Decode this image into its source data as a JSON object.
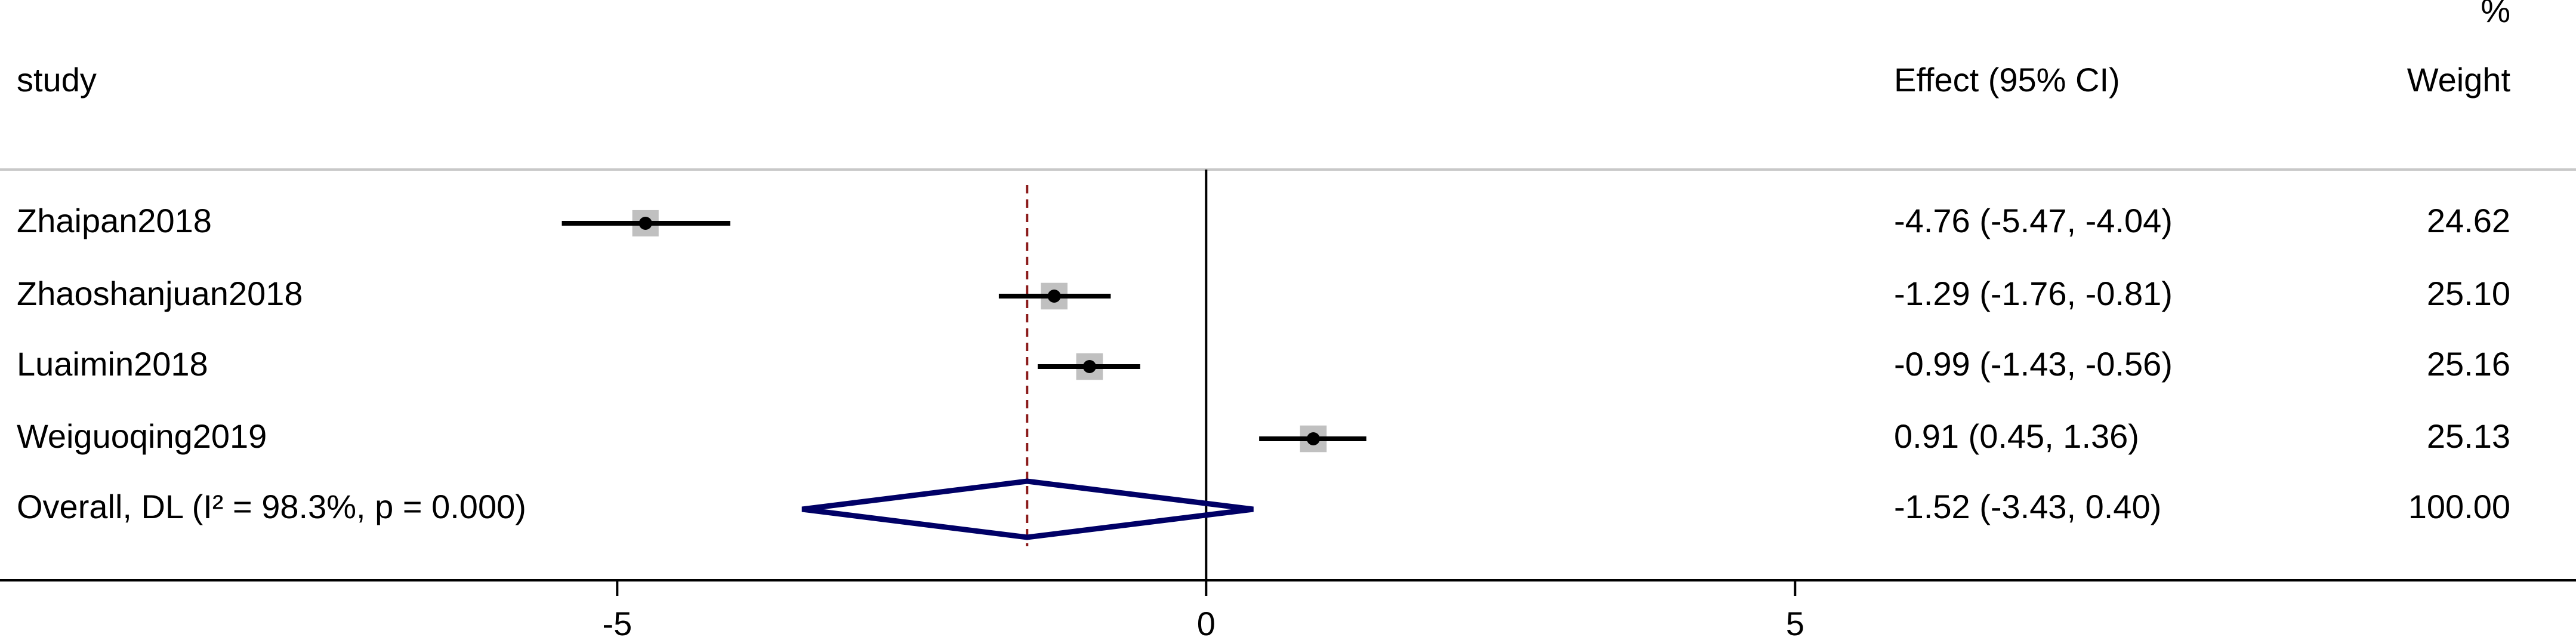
{
  "chart_data": {
    "type": "forest",
    "headers": {
      "study": "study",
      "effect": "Effect (95% CI)",
      "weight_unit": "%",
      "weight": "Weight"
    },
    "studies": [
      "Zhaipan2018",
      "Zhaoshanjuan2018",
      "Luaimin2018",
      "Weiguoqing2019"
    ],
    "values": [
      -4.76,
      -1.29,
      -0.99,
      0.91
    ],
    "lower": [
      -5.47,
      -1.76,
      -1.43,
      0.45
    ],
    "upper": [
      -4.04,
      -0.81,
      -0.56,
      1.36
    ],
    "effect_labels": [
      "-4.76 (-5.47, -4.04)",
      "-1.29 (-1.76, -0.81)",
      "-0.99 (-1.43, -0.56)",
      "0.91 (0.45, 1.36)"
    ],
    "weights": [
      24.62,
      25.1,
      25.16,
      25.13
    ],
    "weight_labels": [
      "24.62",
      "25.10",
      "25.16",
      "25.13"
    ],
    "overall": {
      "label": "Overall, DL (I² = 98.3%, p = 0.000)",
      "value": -1.52,
      "lower": -3.43,
      "upper": 0.4,
      "effect_label": "-1.52 (-3.43, 0.40)",
      "weight": 100,
      "weight_label": "100.00"
    },
    "xlim": [
      -10.24,
      11.63
    ],
    "xticks": [
      -5,
      0,
      5
    ],
    "null_line": 0,
    "ci_color": "#000000",
    "box_color": "#c0c0c0",
    "diamond_color": "#000066",
    "overall_line_color": "#8b1a1a"
  }
}
